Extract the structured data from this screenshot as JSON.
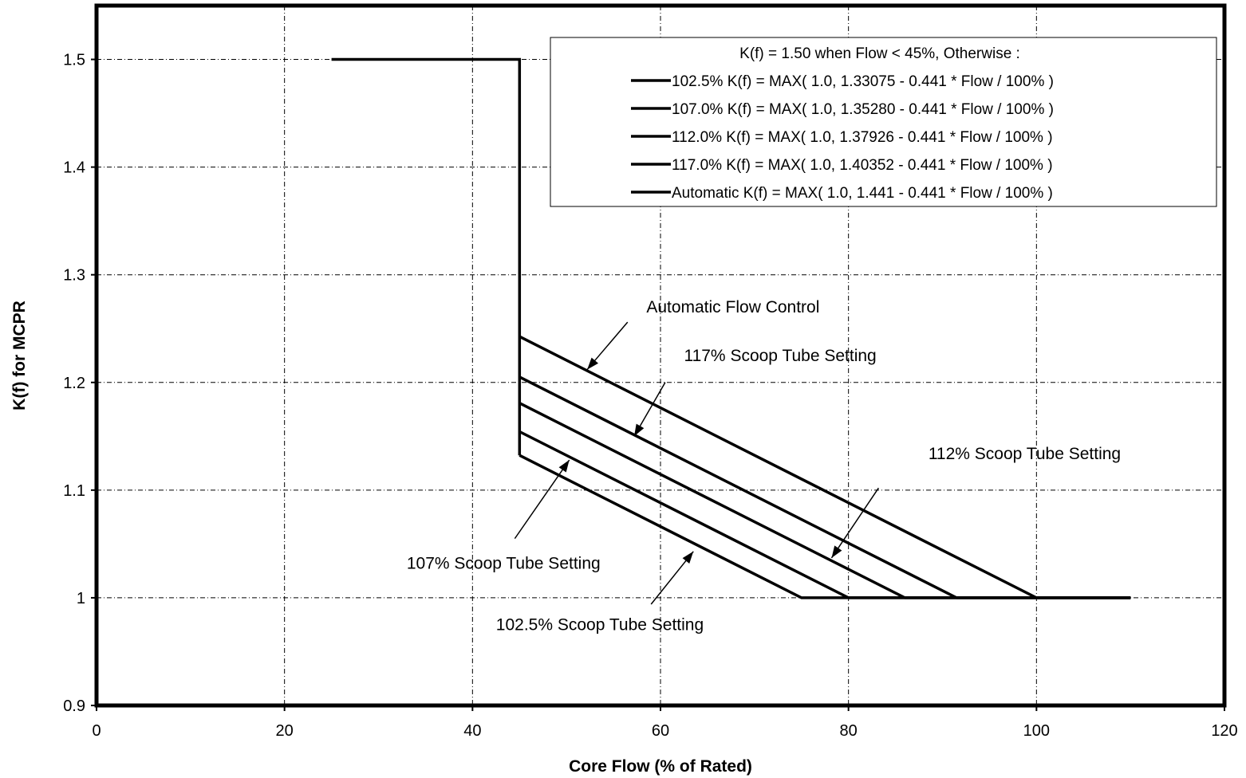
{
  "chart_data": {
    "type": "line",
    "xlabel": "Core Flow (% of Rated)",
    "ylabel": "K(f) for MCPR",
    "xlim": [
      0,
      120
    ],
    "ylim": [
      0.9,
      1.55
    ],
    "x_ticks": [
      0,
      20,
      40,
      60,
      80,
      100,
      120
    ],
    "x_tick_labels": [
      "0",
      "20",
      "40",
      "60",
      "80",
      "100",
      "120"
    ],
    "y_ticks": [
      0.9,
      1.0,
      1.1,
      1.2,
      1.3,
      1.4,
      1.5
    ],
    "y_tick_labels": [
      "0.9",
      "1",
      "1.1",
      "1.2",
      "1.3",
      "1.4",
      "1.5"
    ],
    "grid": true,
    "legend_position": "top-right",
    "legend_header": "K(f) = 1.50  when  Flow < 45%,    Otherwise :",
    "series": [
      {
        "name": "102.5%  K(f) = MAX( 1.0, 1.33075 - 0.441 * Flow / 100% )",
        "x": [
          45,
          75,
          110
        ],
        "y": [
          1.1323,
          1.0,
          1.0
        ]
      },
      {
        "name": "107.0%  K(f) = MAX( 1.0, 1.35280 - 0.441 * Flow / 100% )",
        "x": [
          45,
          80,
          110
        ],
        "y": [
          1.1543,
          1.0,
          1.0
        ]
      },
      {
        "name": "112.0%  K(f) = MAX( 1.0, 1.37926 - 0.441 * Flow / 100% )",
        "x": [
          45,
          86,
          110
        ],
        "y": [
          1.1808,
          1.0,
          1.0
        ]
      },
      {
        "name": "117.0%  K(f) = MAX( 1.0, 1.40352 - 0.441 * Flow / 100% )",
        "x": [
          45,
          91.5,
          110
        ],
        "y": [
          1.2051,
          1.0,
          1.0
        ]
      },
      {
        "name": "Automatic  K(f) = MAX( 1.0, 1.441 - 0.441 * Flow / 100% )",
        "x": [
          45,
          100,
          110
        ],
        "y": [
          1.2426,
          1.0,
          1.0
        ]
      }
    ],
    "step_line": {
      "x": [
        25,
        45,
        45
      ],
      "y": [
        1.5,
        1.5,
        1.1323
      ]
    },
    "annotations": [
      {
        "text": "Automatic Flow Control",
        "text_x": 58.5,
        "text_y": 1.27,
        "arrow_from": [
          56.5,
          1.256
        ],
        "arrow_to": [
          52.2,
          1.212
        ]
      },
      {
        "text": "117% Scoop Tube Setting",
        "text_x": 62.5,
        "text_y": 1.225,
        "arrow_from": [
          60.5,
          1.2
        ],
        "arrow_to": [
          57.2,
          1.15
        ]
      },
      {
        "text": "112% Scoop Tube Setting",
        "text_x": 88.5,
        "text_y": 1.134,
        "arrow_from": [
          83.2,
          1.102
        ],
        "arrow_to": [
          78.2,
          1.037
        ]
      },
      {
        "text": "107% Scoop Tube Setting",
        "text_x": 33,
        "text_y": 1.032,
        "arrow_from": [
          44.5,
          1.055
        ],
        "arrow_to": [
          50.3,
          1.128
        ]
      },
      {
        "text": "102.5% Scoop Tube Setting",
        "text_x": 42.5,
        "text_y": 0.975,
        "arrow_from": [
          59.0,
          0.994
        ],
        "arrow_to": [
          63.5,
          1.043
        ]
      }
    ]
  }
}
